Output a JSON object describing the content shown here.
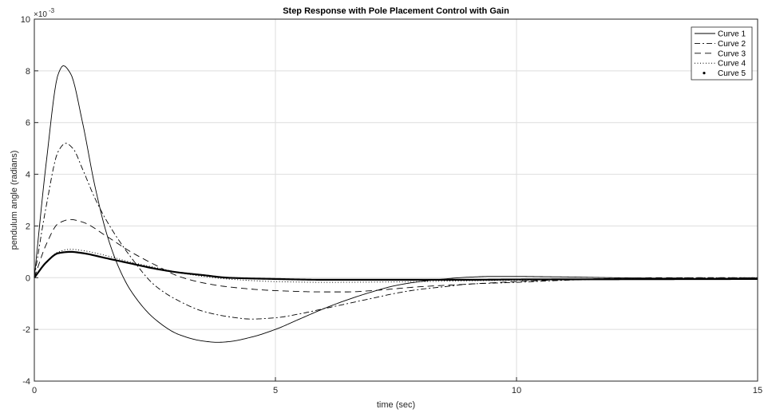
{
  "chart_data": {
    "type": "line",
    "title": "Step Response with Pole Placement Control with Gain",
    "xlabel": "time (sec)",
    "ylabel": "pendulum angle (radians)",
    "y_multiplier": {
      "base": "×10",
      "exponent": "-3"
    },
    "xlim": [
      0,
      15
    ],
    "ylim": [
      -4,
      10
    ],
    "xticks": [
      0,
      5,
      10,
      15
    ],
    "yticks": [
      -4,
      -2,
      0,
      2,
      4,
      6,
      8,
      10
    ],
    "grid": true,
    "legend": {
      "position": "top-right"
    },
    "series": [
      {
        "name": "Curve 1",
        "style": "solid",
        "x": [
          0,
          0.25,
          0.5,
          0.6,
          0.75,
          1.0,
          1.25,
          1.5,
          1.75,
          2.0,
          2.5,
          3.0,
          3.5,
          3.8,
          4.0,
          4.5,
          5.0,
          5.5,
          6.0,
          6.5,
          7.0,
          7.5,
          8.0,
          8.5,
          9.0,
          9.5,
          10.0,
          10.5,
          11.0,
          12.0,
          13.0,
          14.0,
          15.0
        ],
        "y": [
          0,
          4.5,
          7.9,
          8.2,
          7.9,
          6.0,
          3.6,
          1.7,
          0.4,
          -0.5,
          -1.6,
          -2.2,
          -2.45,
          -2.5,
          -2.48,
          -2.3,
          -2.0,
          -1.6,
          -1.2,
          -0.85,
          -0.55,
          -0.3,
          -0.15,
          -0.05,
          0.02,
          0.05,
          0.05,
          0.04,
          0.03,
          0.0,
          -0.02,
          -0.03,
          -0.03
        ]
      },
      {
        "name": "Curve 2",
        "style": "dashdot",
        "x": [
          0,
          0.25,
          0.5,
          0.65,
          0.8,
          1.0,
          1.25,
          1.5,
          2.0,
          2.5,
          3.0,
          3.5,
          4.0,
          4.5,
          5.0,
          5.5,
          6.0,
          6.5,
          7.0,
          7.5,
          8.0,
          8.5,
          9.0,
          10.0,
          11.0,
          12.0,
          13.0,
          14.0,
          15.0
        ],
        "y": [
          0,
          2.8,
          4.9,
          5.2,
          5.0,
          4.2,
          3.1,
          2.2,
          0.8,
          -0.3,
          -0.9,
          -1.3,
          -1.5,
          -1.6,
          -1.55,
          -1.4,
          -1.2,
          -1.0,
          -0.8,
          -0.6,
          -0.45,
          -0.35,
          -0.25,
          -0.18,
          -0.1,
          -0.05,
          -0.02,
          0.0,
          0.0
        ]
      },
      {
        "name": "Curve 3",
        "style": "dashed",
        "x": [
          0,
          0.25,
          0.5,
          0.75,
          1.0,
          1.5,
          2.0,
          2.5,
          3.0,
          3.5,
          4.0,
          5.0,
          6.0,
          6.5,
          7.0,
          8.0,
          9.0,
          10.0,
          11.0,
          12.0,
          13.0,
          14.0,
          15.0
        ],
        "y": [
          0,
          1.3,
          2.1,
          2.25,
          2.15,
          1.6,
          1.0,
          0.5,
          0.05,
          -0.2,
          -0.35,
          -0.5,
          -0.55,
          -0.55,
          -0.5,
          -0.35,
          -0.25,
          -0.15,
          -0.08,
          -0.03,
          0.0,
          0.0,
          0.0
        ]
      },
      {
        "name": "Curve 4",
        "style": "dotted",
        "x": [
          0,
          0.25,
          0.5,
          0.75,
          1.0,
          1.5,
          2.0,
          2.5,
          3.0,
          3.5,
          4.0,
          5.0,
          6.0,
          7.0,
          8.0,
          9.0,
          10.0,
          12.0,
          15.0
        ],
        "y": [
          0,
          0.6,
          1.0,
          1.1,
          1.05,
          0.85,
          0.6,
          0.4,
          0.2,
          0.05,
          -0.05,
          -0.15,
          -0.18,
          -0.17,
          -0.15,
          -0.12,
          -0.1,
          -0.05,
          -0.02
        ]
      },
      {
        "name": "Curve 5",
        "style": "thick",
        "x": [
          0,
          0.25,
          0.5,
          0.75,
          1.0,
          1.5,
          2.0,
          2.5,
          3.0,
          3.5,
          4.0,
          5.0,
          6.0,
          7.0,
          8.0,
          9.0,
          10.0,
          12.0,
          15.0
        ],
        "y": [
          0,
          0.6,
          0.95,
          1.0,
          0.95,
          0.75,
          0.55,
          0.35,
          0.2,
          0.1,
          0.0,
          -0.05,
          -0.08,
          -0.08,
          -0.08,
          -0.08,
          -0.07,
          -0.06,
          -0.05
        ]
      }
    ]
  }
}
